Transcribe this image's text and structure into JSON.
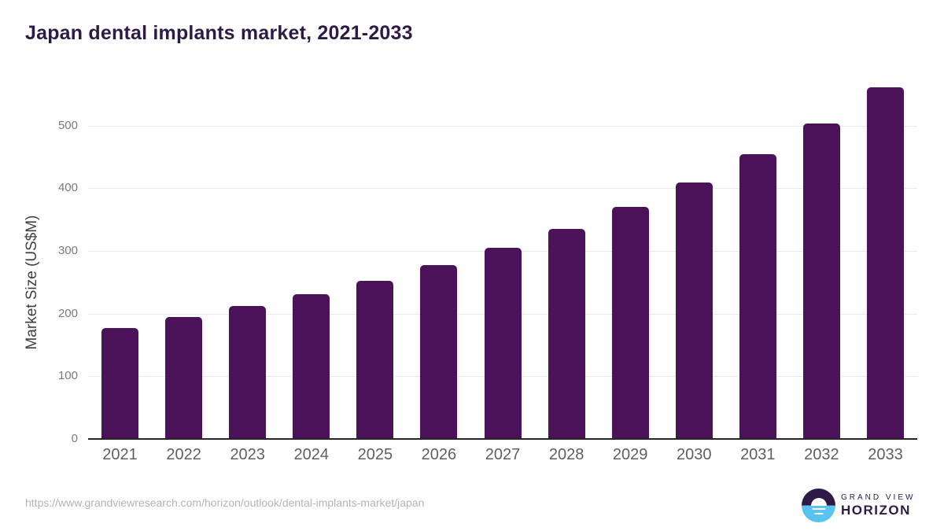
{
  "title": "Japan dental implants market, 2021-2033",
  "footer": {
    "source_url": "https://www.grandviewresearch.com/horizon/outlook/dental-implants-market/japan"
  },
  "logo": {
    "line1": "GRAND VIEW",
    "line2": "HORIZON"
  },
  "colors": {
    "bar": "#4a1259",
    "title_text": "#2e1a47",
    "axis_line": "#262626",
    "gridline": "#e9e9e9",
    "y_tick_text": "#7a7a7a",
    "x_tick_text": "#5f5f5f",
    "url_text": "#b4b4b4",
    "logo_purple": "#2e1a47",
    "logo_blue": "#58c2f0"
  },
  "chart_data": {
    "type": "bar",
    "title": "Japan dental implants market, 2021-2033",
    "categories": [
      "2021",
      "2022",
      "2023",
      "2024",
      "2025",
      "2026",
      "2027",
      "2028",
      "2029",
      "2030",
      "2031",
      "2032",
      "2033"
    ],
    "values": [
      177,
      195,
      212,
      231,
      252,
      277,
      305,
      335,
      370,
      409,
      454,
      503,
      561
    ],
    "xlabel": "",
    "ylabel": "Market Size (US$M)",
    "ylim": [
      0,
      575
    ],
    "yticks": [
      0,
      100,
      200,
      300,
      400,
      500
    ],
    "grid": true,
    "legend": false,
    "bar_color": "#4a1259"
  }
}
